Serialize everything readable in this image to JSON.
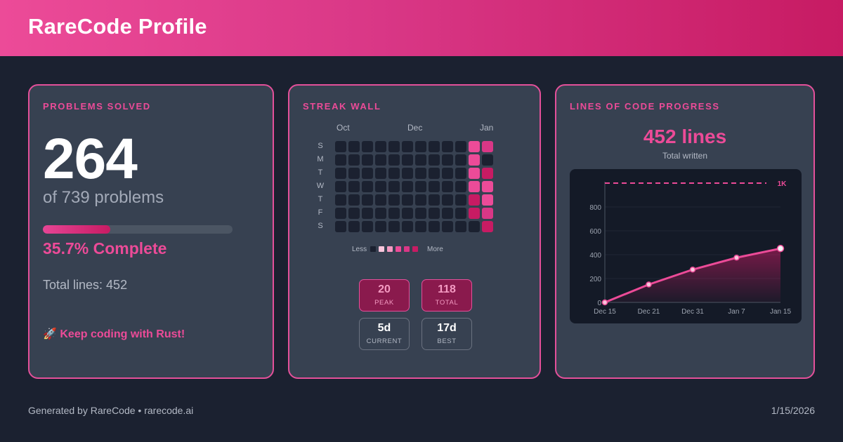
{
  "header": {
    "title": "RareCode Profile"
  },
  "colors": {
    "accent": "#ec4b98",
    "accent_dark": "#c71b63",
    "card_bg": "#374151",
    "page_bg": "#1b2130"
  },
  "problems": {
    "label": "PROBLEMS SOLVED",
    "solved": "264",
    "of_text": "of 739 problems",
    "progress_fraction": 0.357,
    "percent_text": "35.7% Complete",
    "total_lines_text": "Total lines: 452",
    "cta_icon": "rocket-icon",
    "cta_emoji": "🚀",
    "cta_text": "Keep coding with Rust!"
  },
  "streak": {
    "label": "STREAK WALL",
    "months": [
      "Oct",
      "Dec",
      "Jan"
    ],
    "days": [
      "S",
      "M",
      "T",
      "W",
      "T",
      "F",
      "S"
    ],
    "weeks": 12,
    "active_cells": [
      {
        "week": 10,
        "day": 0,
        "level": 3
      },
      {
        "week": 11,
        "day": 0,
        "level": 4
      },
      {
        "week": 10,
        "day": 1,
        "level": 3
      },
      {
        "week": 11,
        "day": 1,
        "level": 0
      },
      {
        "week": 10,
        "day": 2,
        "level": 3
      },
      {
        "week": 11,
        "day": 2,
        "level": 5
      },
      {
        "week": 10,
        "day": 3,
        "level": 3
      },
      {
        "week": 11,
        "day": 3,
        "level": 3
      },
      {
        "week": 10,
        "day": 4,
        "level": 5
      },
      {
        "week": 11,
        "day": 4,
        "level": 3
      },
      {
        "week": 10,
        "day": 5,
        "level": 5
      },
      {
        "week": 11,
        "day": 5,
        "level": 4
      },
      {
        "week": 10,
        "day": 6,
        "level": 0
      },
      {
        "week": 11,
        "day": 6,
        "level": 5
      }
    ],
    "level_colors": [
      "#1b2130",
      "#f9c6dc",
      "#f49ac2",
      "#ec4b98",
      "#d93786",
      "#c71b63"
    ],
    "legend_less": "Less",
    "legend_more": "More",
    "stats": [
      {
        "value": "20",
        "label": "PEAK",
        "style": "pink"
      },
      {
        "value": "118",
        "label": "TOTAL",
        "style": "pink"
      },
      {
        "value": "5d",
        "label": "CURRENT",
        "style": "dark"
      },
      {
        "value": "17d",
        "label": "BEST",
        "style": "dark"
      }
    ]
  },
  "loc": {
    "label": "LINES OF CODE PROGRESS",
    "big": "452 lines",
    "sub": "Total written",
    "goal_label": "1K"
  },
  "chart_data": {
    "type": "line",
    "title": "",
    "xlabel": "",
    "ylabel": "",
    "x_ticks": [
      "Dec 15",
      "Dec 21",
      "Dec 31",
      "Jan 7",
      "Jan 15"
    ],
    "y_ticks": [
      0,
      200,
      400,
      600,
      800
    ],
    "ylim": [
      0,
      1000
    ],
    "goal": 1000,
    "goal_label": "1K",
    "grid": true,
    "series": [
      {
        "x": [
          "Dec 15",
          "Dec 21",
          "Dec 31",
          "Jan 7",
          "Jan 15"
        ],
        "y": [
          0,
          150,
          275,
          375,
          452
        ],
        "markers": true
      }
    ]
  },
  "footer": {
    "left": "Generated by RareCode • rarecode.ai",
    "right": "1/15/2026"
  }
}
